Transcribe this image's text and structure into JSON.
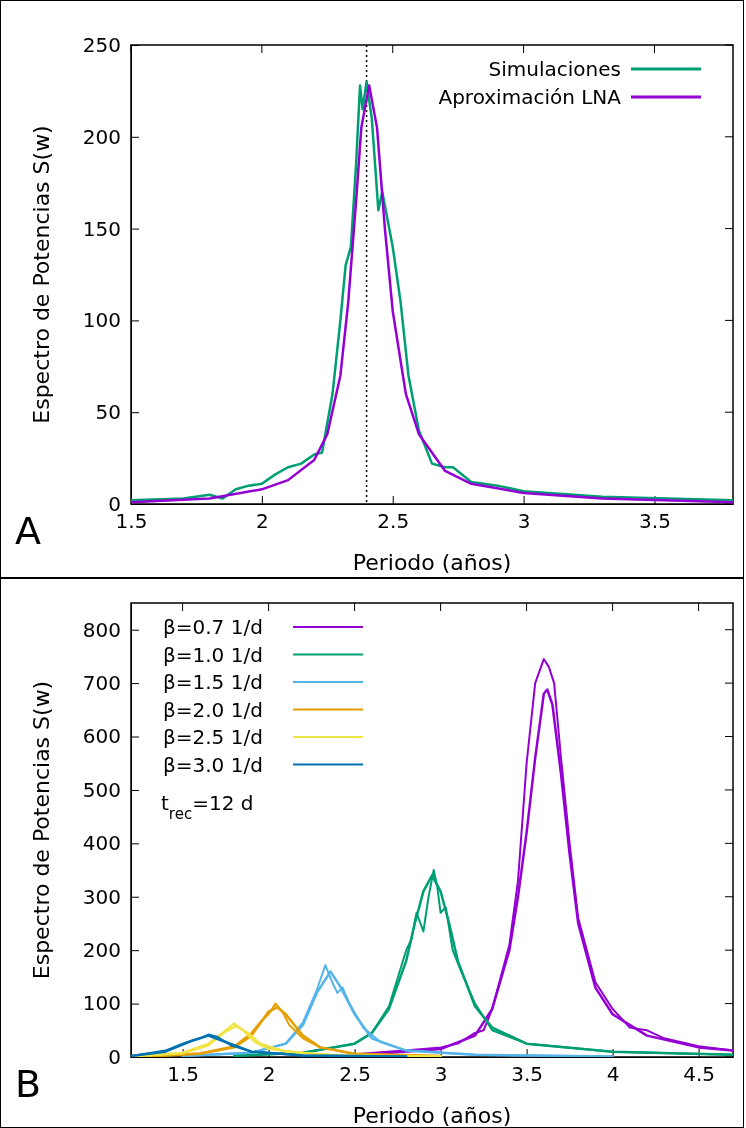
{
  "chart_data": [
    {
      "type": "line",
      "xlabel": "Periodo (años)",
      "ylabel": "Espectro de Potencias S(w)",
      "xlim": [
        1.5,
        3.8
      ],
      "xticks": [
        {
          "value": 1.5,
          "label": "1.5"
        },
        2,
        {
          "value": 2.5,
          "label": "2.5"
        },
        3,
        {
          "value": 3.5,
          "label": "3.5"
        }
      ],
      "ylim": [
        0,
        250
      ],
      "yticks": [
        0,
        50,
        100,
        150,
        200,
        250
      ],
      "legend": "top right",
      "grid": false,
      "annotations": [
        "A"
      ],
      "ref_lines": [
        {
          "axis": "x",
          "value": 2.4,
          "line_style": "dotted",
          "color": "#000000"
        }
      ],
      "series": [
        {
          "name": "Simulaciones",
          "color": "#009e73",
          "x": [
            1.5,
            1.7,
            1.8,
            1.85,
            1.9,
            1.95,
            2.0,
            2.05,
            2.1,
            2.15,
            2.2,
            2.23,
            2.27,
            2.3,
            2.32,
            2.34,
            2.36,
            2.375,
            2.385,
            2.4,
            2.42,
            2.445,
            2.46,
            2.5,
            2.53,
            2.56,
            2.6,
            2.65,
            2.7,
            2.73,
            2.8,
            2.9,
            3.0,
            3.3,
            3.8
          ],
          "values": [
            2,
            3,
            5,
            3,
            8,
            10,
            11,
            16,
            20,
            22,
            27,
            28,
            60,
            100,
            130,
            140,
            185,
            228,
            215,
            230,
            210,
            160,
            170,
            140,
            110,
            70,
            40,
            22,
            20,
            20,
            12,
            10,
            7,
            4,
            2
          ]
        },
        {
          "name": "Aproximación LNA",
          "color": "#9400d3",
          "x": [
            1.5,
            1.8,
            2.0,
            2.1,
            2.2,
            2.25,
            2.3,
            2.33,
            2.36,
            2.38,
            2.41,
            2.44,
            2.47,
            2.5,
            2.55,
            2.6,
            2.7,
            2.8,
            3.0,
            3.3,
            3.8
          ],
          "values": [
            1,
            3,
            8,
            13,
            24,
            38,
            70,
            110,
            165,
            205,
            228,
            205,
            150,
            105,
            60,
            38,
            18,
            11,
            6,
            3,
            1
          ]
        }
      ]
    },
    {
      "type": "line",
      "xlabel": "Periodo (años)",
      "ylabel": "Espectro de Potencias S(w)",
      "xlim": [
        1.2,
        4.7
      ],
      "xticks": [
        {
          "value": 1.5,
          "label": "1.5"
        },
        2,
        {
          "value": 2.5,
          "label": "2.5"
        },
        3,
        {
          "value": 3.5,
          "label": "3.5"
        },
        4,
        {
          "value": 4.5,
          "label": "4.5"
        }
      ],
      "ylim": [
        0,
        850
      ],
      "yticks": [
        0,
        100,
        200,
        300,
        400,
        500,
        600,
        700,
        800
      ],
      "legend": "top left",
      "grid": false,
      "annotations": [
        "B",
        "t$_{rec}$=12 d"
      ],
      "series": [
        {
          "name": "β=0.7 1/d",
          "color": "#9400d3",
          "x": [
            2.5,
            3.0,
            3.2,
            3.3,
            3.4,
            3.45,
            3.5,
            3.55,
            3.6,
            3.62,
            3.65,
            3.7,
            3.75,
            3.8,
            3.9,
            4.0,
            4.2,
            4.5,
            4.7
          ],
          "values": [
            3,
            15,
            40,
            90,
            200,
            300,
            420,
            560,
            680,
            688,
            660,
            530,
            380,
            250,
            130,
            80,
            40,
            18,
            12
          ]
        },
        {
          "color": "#9400d3",
          "x": [
            2.5,
            2.9,
            3.0,
            3.1,
            3.2,
            3.25,
            3.3,
            3.4,
            3.45,
            3.5,
            3.55,
            3.6,
            3.63,
            3.66,
            3.7,
            3.75,
            3.8,
            3.9,
            4.0,
            4.1,
            4.2,
            4.3,
            4.5,
            4.7
          ],
          "values": [
            5,
            15,
            18,
            25,
            45,
            50,
            90,
            210,
            330,
            550,
            700,
            745,
            730,
            700,
            560,
            400,
            260,
            140,
            90,
            55,
            50,
            35,
            20,
            12
          ]
        },
        {
          "name": "β=1.0 1/d",
          "color": "#009e73",
          "x": [
            1.8,
            2.2,
            2.5,
            2.6,
            2.7,
            2.8,
            2.85,
            2.9,
            2.95,
            3.0,
            3.05,
            3.1,
            3.2,
            3.3,
            3.5,
            4.0,
            4.7
          ],
          "values": [
            2,
            8,
            25,
            45,
            90,
            180,
            250,
            310,
            340,
            310,
            250,
            180,
            95,
            55,
            25,
            10,
            4
          ]
        },
        {
          "color": "#009e73",
          "x": [
            1.8,
            2.2,
            2.5,
            2.6,
            2.7,
            2.8,
            2.83,
            2.86,
            2.9,
            2.93,
            2.96,
            2.98,
            3.0,
            3.03,
            3.07,
            3.12,
            3.2,
            3.3,
            3.5,
            4.0,
            4.7
          ],
          "values": [
            3,
            8,
            25,
            45,
            95,
            200,
            220,
            270,
            235,
            300,
            350,
            320,
            270,
            280,
            200,
            160,
            100,
            50,
            25,
            10,
            4
          ]
        },
        {
          "name": "β=1.5 1/d",
          "color": "#56b4e9",
          "x": [
            1.5,
            1.9,
            2.1,
            2.2,
            2.28,
            2.36,
            2.42,
            2.5,
            2.6,
            2.8,
            3.2,
            4.0
          ],
          "values": [
            2,
            8,
            25,
            60,
            120,
            160,
            130,
            80,
            35,
            12,
            4,
            1
          ]
        },
        {
          "color": "#56b4e9",
          "x": [
            1.5,
            1.9,
            2.1,
            2.2,
            2.28,
            2.33,
            2.37,
            2.4,
            2.43,
            2.47,
            2.55,
            2.65,
            2.8,
            3.2,
            4.0
          ],
          "values": [
            2,
            8,
            25,
            65,
            125,
            172,
            140,
            120,
            130,
            100,
            55,
            28,
            12,
            4,
            1
          ]
        },
        {
          "name": "β=2.0 1/d",
          "color": "#e69f00",
          "x": [
            1.3,
            1.6,
            1.8,
            1.9,
            2.0,
            2.05,
            2.1,
            2.2,
            2.3,
            2.5,
            3.0
          ],
          "values": [
            1,
            6,
            18,
            40,
            85,
            93,
            80,
            40,
            18,
            6,
            2
          ]
        },
        {
          "color": "#e69f00",
          "x": [
            1.3,
            1.6,
            1.8,
            1.9,
            1.95,
            2.0,
            2.04,
            2.08,
            2.12,
            2.2,
            2.3,
            2.4,
            2.5,
            3.0
          ],
          "values": [
            1,
            7,
            20,
            45,
            65,
            80,
            100,
            85,
            60,
            35,
            18,
            12,
            5,
            2
          ]
        },
        {
          "name": "β=2.5 1/d",
          "color": "#f0e442",
          "x": [
            1.2,
            1.5,
            1.65,
            1.75,
            1.81,
            1.88,
            1.95,
            2.1,
            2.4,
            3.0
          ],
          "values": [
            1,
            7,
            22,
            48,
            58,
            45,
            25,
            10,
            3,
            1
          ]
        },
        {
          "color": "#f0e442",
          "x": [
            1.2,
            1.5,
            1.65,
            1.75,
            1.8,
            1.85,
            1.92,
            2.0,
            2.2,
            2.4,
            3.0
          ],
          "values": [
            1,
            8,
            25,
            50,
            63,
            50,
            28,
            15,
            8,
            3,
            1
          ]
        },
        {
          "name": "β=3.0 1/d",
          "color": "#0072b2",
          "x": [
            1.2,
            1.4,
            1.55,
            1.65,
            1.75,
            1.9,
            2.2,
            2.8
          ],
          "values": [
            2,
            10,
            30,
            40,
            28,
            10,
            3,
            1
          ]
        },
        {
          "color": "#0072b2",
          "x": [
            1.2,
            1.4,
            1.5,
            1.6,
            1.65,
            1.7,
            1.78,
            1.9,
            2.2,
            2.8
          ],
          "values": [
            2,
            12,
            25,
            35,
            42,
            38,
            22,
            10,
            3,
            1
          ]
        }
      ]
    }
  ]
}
